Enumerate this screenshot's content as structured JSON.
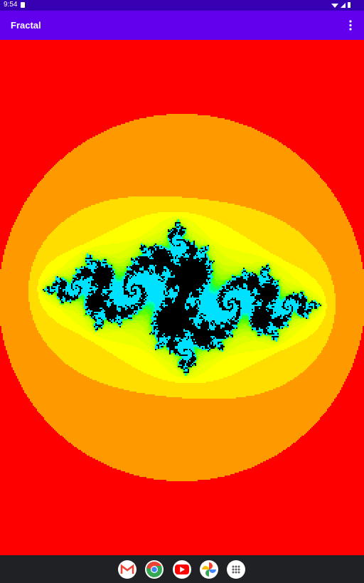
{
  "status_bar": {
    "time": "9:54"
  },
  "app_bar": {
    "title": "Fractal"
  }
}
